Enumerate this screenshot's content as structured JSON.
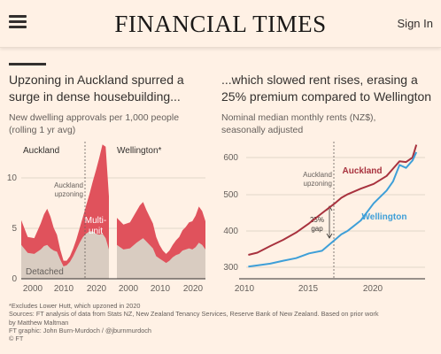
{
  "header": {
    "masthead": "FINANCIAL TIMES",
    "sign_in": "Sign In",
    "menu_icon": "hamburger-menu-icon"
  },
  "left": {
    "title_line1": "Upzoning in Auckland spurred a",
    "title_line2": "surge in dense housebuilding...",
    "subtitle_line1": "New dwelling approvals per 1,000 people",
    "subtitle_line2": "(rolling 1 yr avg)",
    "panel_auckland": "Auckland",
    "panel_wellington": "Wellington*",
    "annot_upzoning_line1": "Auckland",
    "annot_upzoning_line2": "upzoning",
    "label_multi_line1": "Multi-",
    "label_multi_line2": "unit",
    "label_detached": "Detached"
  },
  "right": {
    "title_line1": "...which slowed rent rises, erasing a",
    "title_line2": "25% premium compared to Wellington",
    "subtitle_line1": "Nominal median monthly rents (NZ$),",
    "subtitle_line2": "seasonally adjusted",
    "annot_upzoning_line1": "Auckland",
    "annot_upzoning_line2": "upzoning",
    "gap_line1": "25%",
    "gap_line2": "gap",
    "label_auckland": "Auckland",
    "label_wellington": "Wellington"
  },
  "footnote": {
    "line1": "*Excludes Lower Hutt, which upzoned in 2020",
    "line2": "Sources: FT analysis of data from Stats NZ, New Zealand Tenancy Services, Reserve Bank of New Zealand. Based on prior work",
    "line3": "by Matthew Maltman",
    "line4": "FT graphic: John Burn-Murdoch / @jburnmurdoch",
    "line5": "© FT"
  },
  "colors": {
    "background": "#FFF1E5",
    "multi_unit": "#E0525C",
    "detached": "#D9CCC1",
    "auckland_line": "#A8323E",
    "wellington_line": "#3E9FD8",
    "grid": "#D8CCBF"
  },
  "chart_data": [
    {
      "type": "area",
      "panel": "Auckland",
      "x_ticks": [
        "2000",
        "2010",
        "2020"
      ],
      "y_ticks": [
        "0",
        "5",
        "10"
      ],
      "ylim": [
        0,
        12
      ],
      "xlim": [
        1996,
        2023
      ],
      "stacked": true,
      "x": [
        1996,
        1998,
        2000,
        2002,
        2003,
        2004,
        2005,
        2006,
        2007,
        2008,
        2009,
        2010,
        2011,
        2012,
        2013,
        2014,
        2015,
        2016,
        2017,
        2018,
        2019,
        2020,
        2021,
        2022,
        2023
      ],
      "series": [
        {
          "name": "Detached",
          "values": [
            3.0,
            2.3,
            2.2,
            2.6,
            2.9,
            3.0,
            2.7,
            2.5,
            2.4,
            1.7,
            1.1,
            1.2,
            1.5,
            2.0,
            2.6,
            3.2,
            3.7,
            4.0,
            4.2,
            4.2,
            4.0,
            3.9,
            4.0,
            3.6,
            2.6
          ]
        },
        {
          "name": "Multi-unit",
          "values": [
            2.2,
            1.4,
            1.4,
            2.3,
            2.8,
            3.2,
            2.8,
            2.0,
            1.5,
            0.9,
            0.5,
            0.4,
            0.5,
            0.7,
            0.9,
            1.3,
            1.8,
            2.5,
            3.3,
            4.4,
            5.6,
            6.8,
            7.9,
            8.1,
            4.7
          ]
        }
      ]
    },
    {
      "type": "area",
      "panel": "Wellington*",
      "x_ticks": [
        "2000",
        "2010",
        "2020"
      ],
      "ylim": [
        0,
        12
      ],
      "xlim": [
        1996,
        2023
      ],
      "stacked": true,
      "x": [
        1996,
        1998,
        2000,
        2002,
        2003,
        2004,
        2005,
        2006,
        2007,
        2008,
        2009,
        2010,
        2011,
        2012,
        2013,
        2014,
        2015,
        2016,
        2017,
        2018,
        2019,
        2020,
        2021,
        2022,
        2023
      ],
      "series": [
        {
          "name": "Detached",
          "values": [
            3.0,
            2.6,
            2.7,
            3.2,
            3.4,
            3.6,
            3.3,
            3.0,
            2.7,
            2.0,
            1.8,
            1.6,
            1.4,
            1.6,
            1.9,
            2.1,
            2.2,
            2.5,
            2.6,
            2.7,
            2.6,
            2.8,
            3.2,
            3.0,
            2.6
          ]
        },
        {
          "name": "Multi-unit",
          "values": [
            2.4,
            2.2,
            2.3,
            2.8,
            3.1,
            3.2,
            2.8,
            2.5,
            2.2,
            1.7,
            1.2,
            0.9,
            0.8,
            0.9,
            1.1,
            1.3,
            1.5,
            1.8,
            2.0,
            2.3,
            2.5,
            2.8,
            3.2,
            3.0,
            2.5
          ]
        }
      ]
    },
    {
      "type": "line",
      "x_ticks": [
        "2010",
        "2015",
        "2020"
      ],
      "y_ticks": [
        "300",
        "400",
        "500",
        "600"
      ],
      "xlim": [
        2010,
        2023.5
      ],
      "ylim": [
        280,
        640
      ],
      "x": [
        2010.3,
        2011,
        2012,
        2013,
        2014,
        2015,
        2016,
        2017,
        2017.5,
        2018,
        2019,
        2020,
        2021,
        2021.5,
        2022,
        2022.5,
        2023,
        2023.3
      ],
      "series": [
        {
          "name": "Auckland",
          "values": [
            334,
            340,
            358,
            375,
            395,
            420,
            448,
            475,
            490,
            500,
            515,
            528,
            550,
            570,
            590,
            588,
            600,
            635
          ]
        },
        {
          "name": "Wellington",
          "values": [
            302,
            305,
            310,
            318,
            325,
            338,
            345,
            375,
            390,
            400,
            428,
            475,
            510,
            535,
            580,
            572,
            592,
            615
          ]
        }
      ]
    }
  ]
}
